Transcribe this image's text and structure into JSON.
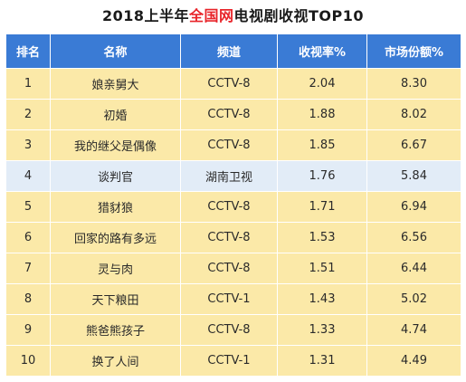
{
  "title": {
    "prefix": "2018上半年",
    "highlight": "全国网",
    "suffix": "电视剧收视TOP10"
  },
  "colors": {
    "header_bg": "#3a7bd5",
    "row_bg": "#fbe9a8",
    "highlight_row_bg": "#e2ecf7",
    "title_highlight": "#e8242a"
  },
  "table": {
    "headers": [
      "排名",
      "名称",
      "频道",
      "收视率%",
      "市场份额%"
    ],
    "rows": [
      {
        "rank": "1",
        "name": "娘亲舅大",
        "channel": "CCTV-8",
        "rating": "2.04",
        "share": "8.30",
        "highlight": false
      },
      {
        "rank": "2",
        "name": "初婚",
        "channel": "CCTV-8",
        "rating": "1.88",
        "share": "8.02",
        "highlight": false
      },
      {
        "rank": "3",
        "name": "我的继父是偶像",
        "channel": "CCTV-8",
        "rating": "1.85",
        "share": "6.67",
        "highlight": false
      },
      {
        "rank": "4",
        "name": "谈判官",
        "channel": "湖南卫视",
        "rating": "1.76",
        "share": "5.84",
        "highlight": true
      },
      {
        "rank": "5",
        "name": "猎豺狼",
        "channel": "CCTV-8",
        "rating": "1.71",
        "share": "6.94",
        "highlight": false
      },
      {
        "rank": "6",
        "name": "回家的路有多远",
        "channel": "CCTV-8",
        "rating": "1.53",
        "share": "6.56",
        "highlight": false
      },
      {
        "rank": "7",
        "name": "灵与肉",
        "channel": "CCTV-8",
        "rating": "1.51",
        "share": "6.44",
        "highlight": false
      },
      {
        "rank": "8",
        "name": "天下粮田",
        "channel": "CCTV-1",
        "rating": "1.43",
        "share": "5.02",
        "highlight": false
      },
      {
        "rank": "9",
        "name": "熊爸熊孩子",
        "channel": "CCTV-8",
        "rating": "1.33",
        "share": "4.74",
        "highlight": false
      },
      {
        "rank": "10",
        "name": "换了人间",
        "channel": "CCTV-1",
        "rating": "1.31",
        "share": "4.49",
        "highlight": false
      }
    ]
  }
}
